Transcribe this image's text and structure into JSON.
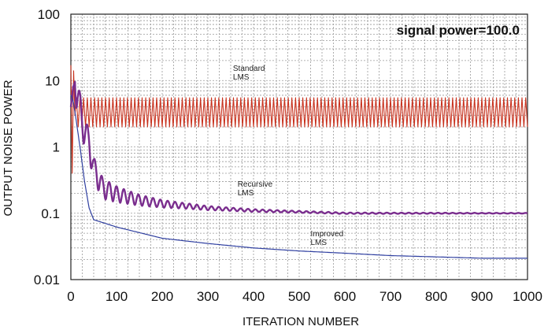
{
  "chart_data": {
    "type": "line",
    "title": "",
    "xlabel": "ITERATION NUMBER",
    "ylabel": "OUTPUT NOISE POWER",
    "xlim": [
      0,
      1000
    ],
    "ylim": [
      0.01,
      100
    ],
    "yscale": "log",
    "grid": true,
    "legend": "none",
    "x_ticks": [
      "0",
      "100",
      "200",
      "300",
      "400",
      "500",
      "600",
      "700",
      "800",
      "900",
      "1000"
    ],
    "y_ticks": [
      "0.01",
      "0.1",
      "1",
      "10",
      "100"
    ],
    "annotation": "signal power=100.0",
    "series": [
      {
        "name": "Standard LMS",
        "color": "#c8321e",
        "x": [
          0,
          4,
          6,
          10,
          20,
          50,
          100,
          200,
          300,
          400,
          500,
          600,
          700,
          800,
          900,
          1000
        ],
        "y": [
          17,
          0.4,
          14,
          3,
          5.5,
          2.0,
          5.5,
          2.0,
          5.5,
          2.0,
          5.5,
          2.0,
          5.5,
          2.0,
          5.5,
          2.0
        ]
      },
      {
        "name": "Recursive LMS",
        "color": "#7a2e8e",
        "x": [
          0,
          5,
          10,
          15,
          25,
          40,
          50,
          70,
          100,
          150,
          200,
          300,
          400,
          500,
          600,
          700,
          800,
          900,
          1000
        ],
        "y": [
          4,
          8,
          10,
          7,
          2.5,
          1.2,
          0.5,
          0.25,
          0.2,
          0.16,
          0.14,
          0.12,
          0.11,
          0.105,
          0.1,
          0.1,
          0.1,
          0.1,
          0.1
        ]
      },
      {
        "name": "Improved LMS",
        "color": "#2f3fa0",
        "x": [
          0,
          5,
          10,
          20,
          30,
          40,
          50,
          100,
          200,
          300,
          400,
          500,
          600,
          700,
          800,
          900,
          1000
        ],
        "y": [
          6,
          5,
          3,
          1.0,
          0.3,
          0.12,
          0.08,
          0.062,
          0.042,
          0.035,
          0.03,
          0.027,
          0.025,
          0.023,
          0.022,
          0.021,
          0.021
        ]
      }
    ],
    "labels": [
      {
        "lines": [
          "Standard",
          "LMS"
        ],
        "x": 355,
        "y": 14
      },
      {
        "lines": [
          "Recursive",
          "LMS"
        ],
        "x": 365,
        "y": 0.25
      },
      {
        "lines": [
          "Improved",
          "LMS"
        ],
        "x": 525,
        "y": 0.045
      }
    ]
  }
}
